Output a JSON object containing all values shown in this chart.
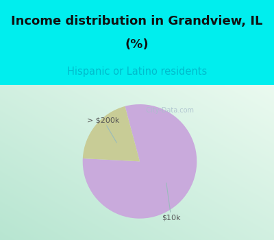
{
  "title_line1": "Income distribution in Grandview, IL",
  "title_line2": "(%)",
  "subtitle": "Hispanic or Latino residents",
  "slices": [
    {
      "label": "$10k",
      "value": 80,
      "color": "#C9AADC"
    },
    {
      "label": "> $200k",
      "value": 20,
      "color": "#C8CC96"
    }
  ],
  "title_fontsize": 13,
  "subtitle_fontsize": 10.5,
  "subtitle_color": "#00BBCC",
  "title_color": "#111111",
  "cyan_color": "#00EEEE",
  "watermark": "  City-Data.com",
  "watermark_color": "#AABFCC",
  "annotation_color": "#555555",
  "annotation_line_color": "#99BBBB",
  "chart_bg_left": "#C8EDD8",
  "chart_bg_right": "#EEF8F2"
}
